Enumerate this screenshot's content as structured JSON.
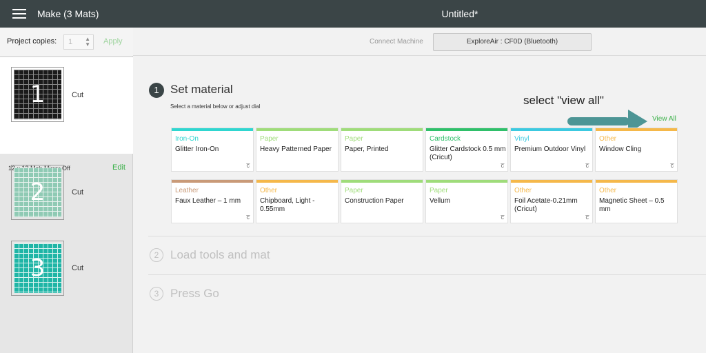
{
  "header": {
    "make_title": "Make (3 Mats)",
    "doc_title": "Untitled*"
  },
  "left": {
    "copies_label": "Project copies:",
    "copies_value": "1",
    "apply_label": "Apply",
    "mats": [
      {
        "number": "1",
        "action": "Cut",
        "info": "12 x 12 Mat; Mirror Off",
        "edit": "Edit"
      },
      {
        "number": "2",
        "action": "Cut"
      },
      {
        "number": "3",
        "action": "Cut"
      }
    ]
  },
  "connect": {
    "label": "Connect Machine",
    "machine": "ExploreAir : CF0D (Bluetooth)"
  },
  "step1": {
    "number": "1",
    "title": "Set material",
    "subtitle": "Select a material below or adjust dial",
    "annotation": "select \"view all\"",
    "view_all": "View All"
  },
  "materials": [
    {
      "category": "Iron-On",
      "name": "Glitter Iron-On",
      "color": "#2fd6d0"
    },
    {
      "category": "Paper",
      "name": "Heavy Patterned Paper",
      "color": "#9fdc7a"
    },
    {
      "category": "Paper",
      "name": "Paper, Printed",
      "color": "#9fdc7a"
    },
    {
      "category": "Cardstock",
      "name": "Glitter Cardstock 0.5 mm (Cricut)",
      "color": "#2fbf6a"
    },
    {
      "category": "Vinyl",
      "name": "Premium Outdoor Vinyl",
      "color": "#3cc9e0"
    },
    {
      "category": "Other",
      "name": "Window Cling",
      "color": "#f5b84a"
    },
    {
      "category": "Leather",
      "name": "Faux Leather – 1 mm",
      "color": "#c99a78"
    },
    {
      "category": "Other",
      "name": "Chipboard, Light - 0.55mm",
      "color": "#f5b84a"
    },
    {
      "category": "Paper",
      "name": "Construction Paper",
      "color": "#9fdc7a"
    },
    {
      "category": "Paper",
      "name": "Vellum",
      "color": "#9fdc7a"
    },
    {
      "category": "Other",
      "name": "Foil Acetate-0.21mm (Cricut)",
      "color": "#f5b84a"
    },
    {
      "category": "Other",
      "name": "Magnetic Sheet – 0.5 mm",
      "color": "#f5b84a"
    }
  ],
  "card_badge": "c̅",
  "step2": {
    "number": "2",
    "title": "Load tools and mat"
  },
  "step3": {
    "number": "3",
    "title": "Press Go"
  },
  "colors": {
    "accent_green": "#3cb14a",
    "topbar": "#3b4547",
    "arrow": "#4d9595"
  }
}
